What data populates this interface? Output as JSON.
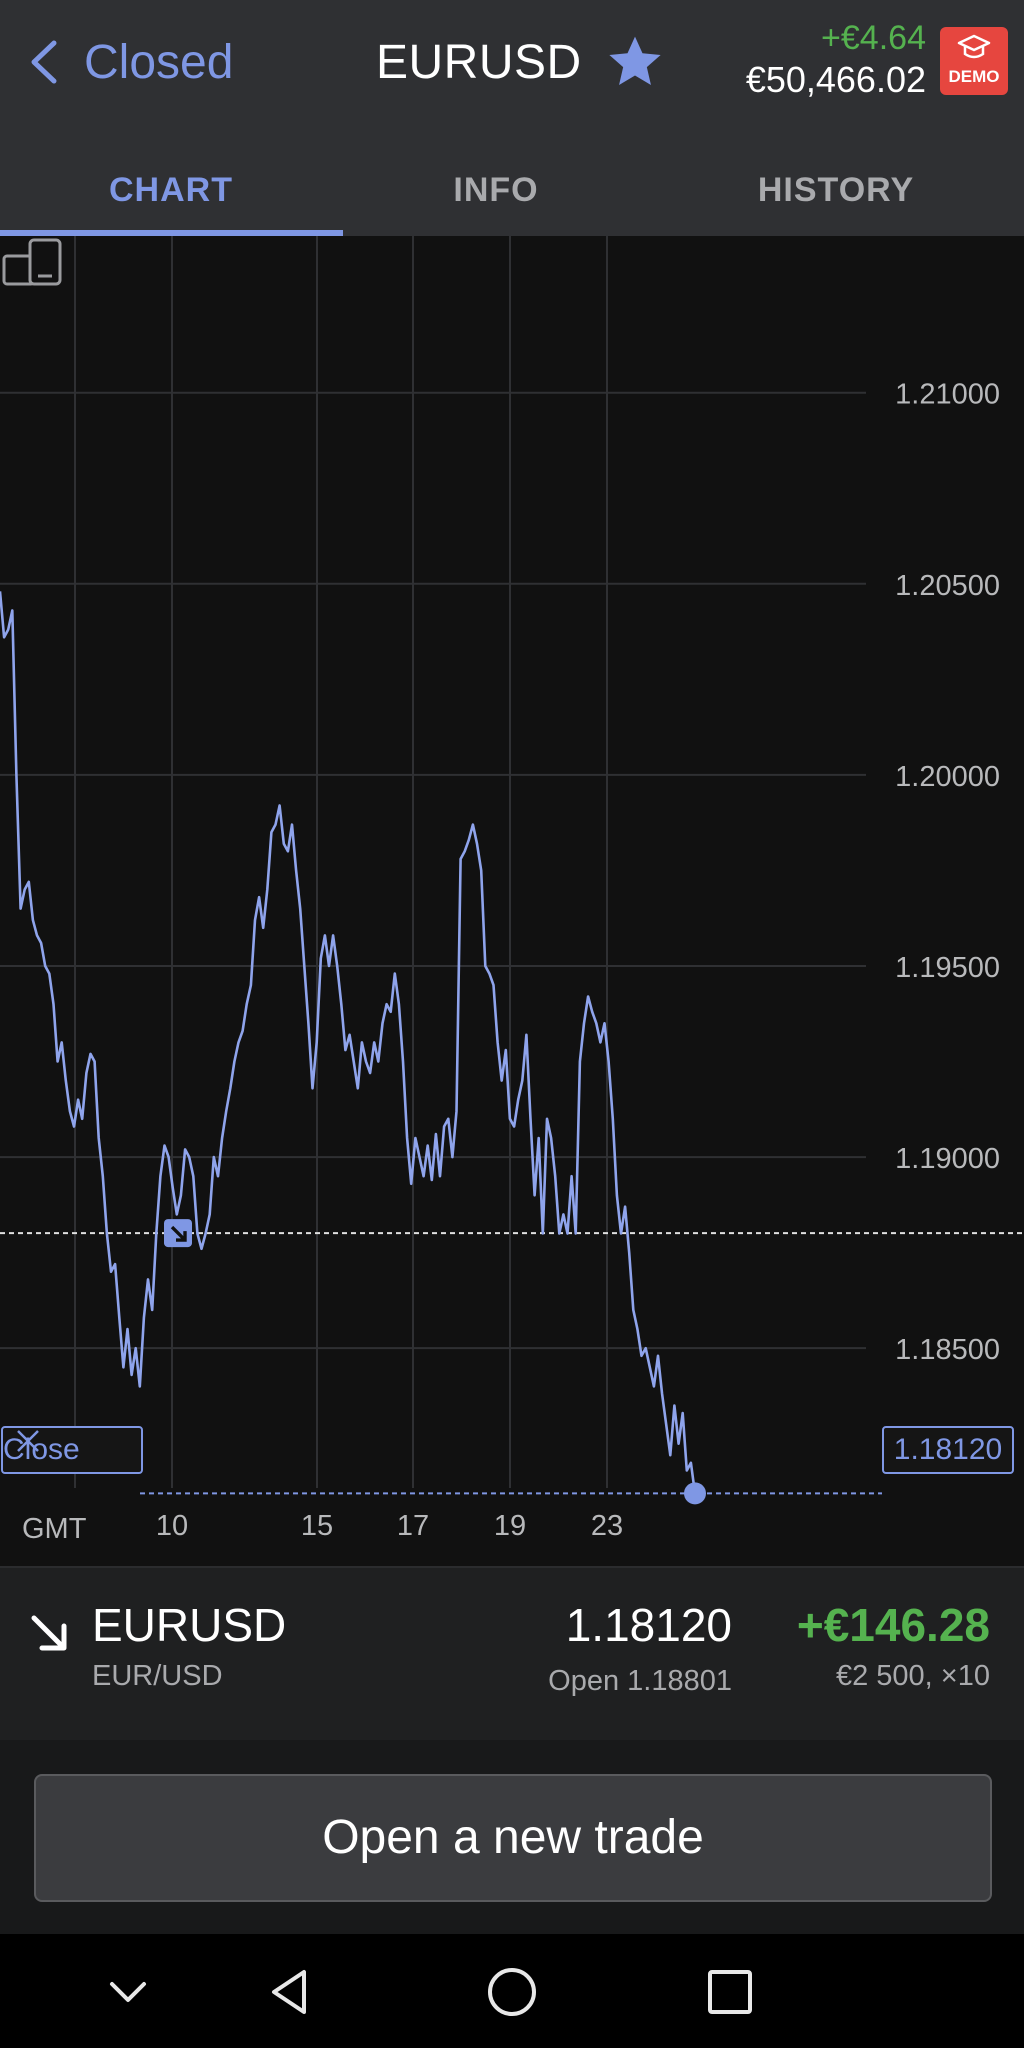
{
  "header": {
    "back_label": "Closed",
    "title": "EURUSD",
    "pnl": "+€4.64",
    "balance": "€50,466.02",
    "demo_label": "DEMO"
  },
  "tabs": [
    {
      "label": "CHART",
      "active": true
    },
    {
      "label": "INFO",
      "active": false
    },
    {
      "label": "HISTORY",
      "active": false
    }
  ],
  "chart_data": {
    "type": "line",
    "title": "",
    "xlabel": "GMT",
    "ylabel": "",
    "ylim": [
      1.1793,
      1.2141
    ],
    "y_ticks": [
      "1.21000",
      "1.20500",
      "1.20000",
      "1.19500",
      "1.19000",
      "1.18500"
    ],
    "x_ticks": [
      "10",
      "15",
      "17",
      "19",
      "23"
    ],
    "grid": true,
    "series": [
      {
        "values": [
          1.2048,
          1.2036,
          1.2038,
          1.2043,
          1.2,
          1.1965,
          1.197,
          1.1972,
          1.1962,
          1.1958,
          1.1956,
          1.195,
          1.1948,
          1.194,
          1.1925,
          1.193,
          1.192,
          1.1912,
          1.1908,
          1.1915,
          1.191,
          1.1922,
          1.1927,
          1.1925,
          1.1905,
          1.1895,
          1.188,
          1.187,
          1.1872,
          1.1858,
          1.1845,
          1.1855,
          1.1843,
          1.185,
          1.184,
          1.1858,
          1.1868,
          1.186,
          1.188,
          1.1895,
          1.1903,
          1.19,
          1.1892,
          1.1885,
          1.189,
          1.1902,
          1.19,
          1.1895,
          1.188,
          1.1876,
          1.188,
          1.1885,
          1.19,
          1.1895,
          1.1905,
          1.1912,
          1.1918,
          1.1925,
          1.193,
          1.1933,
          1.194,
          1.1945,
          1.1962,
          1.1968,
          1.196,
          1.197,
          1.1985,
          1.1987,
          1.1992,
          1.1982,
          1.198,
          1.1987,
          1.1975,
          1.1965,
          1.195,
          1.1935,
          1.1918,
          1.193,
          1.1952,
          1.1958,
          1.195,
          1.1958,
          1.195,
          1.194,
          1.1928,
          1.1932,
          1.1925,
          1.1918,
          1.193,
          1.1925,
          1.1922,
          1.193,
          1.1925,
          1.1935,
          1.194,
          1.1938,
          1.1948,
          1.194,
          1.1925,
          1.1905,
          1.1893,
          1.1905,
          1.19,
          1.1895,
          1.1903,
          1.1894,
          1.1906,
          1.1895,
          1.1908,
          1.191,
          1.19,
          1.1912,
          1.1978,
          1.198,
          1.1983,
          1.1987,
          1.1982,
          1.1975,
          1.195,
          1.1948,
          1.1945,
          1.193,
          1.192,
          1.1928,
          1.191,
          1.1908,
          1.1915,
          1.192,
          1.1932,
          1.191,
          1.189,
          1.1905,
          1.188,
          1.191,
          1.1905,
          1.1895,
          1.188,
          1.1885,
          1.188,
          1.1895,
          1.188,
          1.1925,
          1.1935,
          1.1942,
          1.1938,
          1.1935,
          1.193,
          1.1935,
          1.1925,
          1.191,
          1.189,
          1.188,
          1.1887,
          1.1875,
          1.186,
          1.1855,
          1.1848,
          1.185,
          1.1845,
          1.184,
          1.1848,
          1.1838,
          1.183,
          1.1822,
          1.1835,
          1.1825,
          1.1833,
          1.1818,
          1.182,
          1.1812
        ]
      }
    ],
    "open_price": 1.18801,
    "current_price": 1.1812,
    "current_price_label": "1.18120"
  },
  "chart_controls": {
    "close_label": "Close"
  },
  "position": {
    "symbol": "EURUSD",
    "pair": "EUR/USD",
    "price": "1.18120",
    "open": "Open 1.18801",
    "profit": "+€146.28",
    "size": "€2 500, ×10"
  },
  "actions": {
    "new_trade": "Open a new trade"
  },
  "colors": {
    "accent": "#7f97e4",
    "profit": "#55b24f",
    "demo": "#e6463f"
  }
}
